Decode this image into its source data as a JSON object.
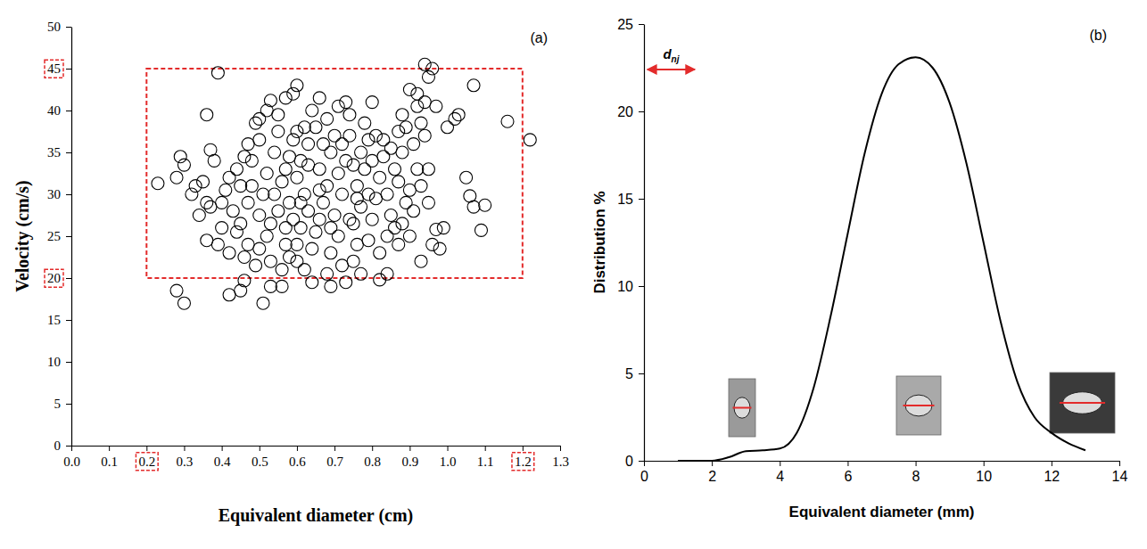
{
  "chart_data": [
    {
      "type": "scatter",
      "panel_label": "(a)",
      "x_label": "Equivalent diameter (cm)",
      "y_label": "Velocity (cm/s)",
      "xlim": [
        0,
        1.3
      ],
      "ylim": [
        0,
        50
      ],
      "xticks": [
        {
          "value": 0,
          "label": "0.0"
        },
        0.1,
        0.2,
        0.3,
        0.4,
        0.5,
        0.6,
        0.7,
        0.8,
        0.9,
        {
          "value": 1,
          "label": "1.0"
        },
        1.1,
        1.2,
        1.3
      ],
      "yticks": [
        0,
        5,
        10,
        15,
        20,
        25,
        30,
        35,
        40,
        45,
        50
      ],
      "marker": "open-circle",
      "color": "#000000",
      "grid": false,
      "highlight": {
        "x": [
          0.2,
          1.2
        ],
        "y": [
          20,
          45
        ]
      },
      "x": [
        0.23,
        0.28,
        0.29,
        0.3,
        0.28,
        0.3,
        0.39,
        0.36,
        0.37,
        0.38,
        0.35,
        0.36,
        0.37,
        0.34,
        0.36,
        0.42,
        0.45,
        0.46,
        0.51,
        0.53,
        0.56,
        0.69,
        0.82,
        0.84,
        0.93,
        0.98,
        0.96,
        0.97,
        0.99,
        1.09,
        1.07,
        1.1,
        1.06,
        1.05,
        1.16,
        1.22,
        1.07,
        1.03,
        1.02,
        1.0,
        0.94,
        0.96,
        0.95,
        0.97,
        0.9,
        0.92,
        0.6,
        0.59,
        0.57,
        0.53,
        0.52,
        0.49,
        0.5,
        0.46,
        0.44,
        0.42,
        0.41,
        0.4,
        0.43,
        0.45,
        0.44,
        0.47,
        0.46,
        0.49,
        0.5,
        0.52,
        0.53,
        0.55,
        0.54,
        0.56,
        0.57,
        0.58,
        0.59,
        0.6,
        0.62,
        0.63,
        0.61,
        0.6,
        0.62,
        0.63,
        0.61,
        0.6,
        0.58,
        0.56,
        0.6,
        0.64,
        0.65,
        0.66,
        0.67,
        0.68,
        0.66,
        0.69,
        0.7,
        0.68,
        0.71,
        0.73,
        0.74,
        0.72,
        0.73,
        0.71,
        0.72,
        0.7,
        0.71,
        0.69,
        0.72,
        0.75,
        0.76,
        0.75,
        0.77,
        0.76,
        0.78,
        0.77,
        0.79,
        0.78,
        0.8,
        0.81,
        0.8,
        0.82,
        0.81,
        0.8,
        0.79,
        0.82,
        0.84,
        0.85,
        0.84,
        0.86,
        0.85,
        0.87,
        0.88,
        0.89,
        0.88,
        0.87,
        0.89,
        0.88,
        0.87,
        0.9,
        0.91,
        0.9,
        0.92,
        0.91,
        0.93,
        0.92,
        0.94,
        0.94,
        0.93,
        0.95,
        0.95,
        0.64,
        0.66,
        0.65,
        0.55,
        0.54,
        0.52,
        0.51,
        0.5,
        0.48,
        0.47,
        0.45,
        0.48,
        0.47,
        0.5,
        0.55,
        0.57,
        0.58,
        0.75,
        0.74,
        0.79,
        0.83,
        0.83,
        0.86,
        0.77,
        0.73,
        0.62,
        0.64,
        0.68,
        0.4,
        0.42,
        0.39,
        0.33,
        0.32,
        0.74,
        0.76,
        0.67,
        0.63,
        0.69,
        0.66,
        0.53,
        0.57,
        0.59,
        0.61
      ],
      "values": [
        31.3,
        32,
        34.5,
        33.5,
        18.5,
        17,
        44.5,
        39.5,
        35.3,
        34,
        31.5,
        29,
        28.5,
        27.5,
        24.5,
        18,
        18.5,
        19.7,
        17,
        19,
        19,
        19,
        19.8,
        20.5,
        22,
        23.5,
        24,
        25.8,
        26,
        25.7,
        28.5,
        28.7,
        29.8,
        32,
        38.7,
        36.5,
        43,
        39.5,
        39,
        38,
        45.5,
        45,
        44,
        40.5,
        42.5,
        42,
        43,
        42,
        41.5,
        41.2,
        40,
        38.5,
        36.5,
        34.5,
        33,
        32,
        30.5,
        29,
        28,
        26.5,
        25.5,
        24,
        22.5,
        21.5,
        23.5,
        25,
        26.5,
        28,
        30,
        31.5,
        33,
        34.5,
        36.5,
        37.5,
        38,
        36,
        34,
        32,
        30,
        28,
        26,
        24,
        22.5,
        21,
        22,
        23.5,
        25.5,
        27,
        29,
        31,
        33,
        35,
        37,
        39,
        40.5,
        41,
        39.5,
        36,
        34,
        32.5,
        30,
        27.5,
        25,
        23,
        21.5,
        22,
        24,
        26.5,
        28.5,
        31,
        33,
        35,
        36.5,
        38.5,
        41,
        37,
        34,
        32,
        29.5,
        27,
        24.5,
        23,
        25,
        27.5,
        30,
        33,
        35.5,
        37.5,
        39.5,
        38,
        35,
        31.5,
        29,
        26.5,
        24,
        25,
        28,
        30.5,
        33,
        36,
        38.5,
        40.5,
        41,
        37,
        31,
        33,
        29,
        40,
        41.5,
        38,
        37.5,
        35,
        32.5,
        30,
        27.5,
        31,
        29,
        31,
        34,
        36,
        39,
        39.5,
        26,
        29,
        33.5,
        37,
        30,
        34.5,
        36.5,
        26,
        20.5,
        19.5,
        21,
        19.5,
        20.5,
        26,
        23,
        24,
        31,
        30,
        27,
        29.5,
        36,
        33.5,
        26,
        30.5,
        22,
        24,
        27,
        29
      ]
    },
    {
      "type": "line",
      "panel_label": "(b)",
      "x_label": "Equivalent diameter (mm)",
      "y_label": "Distribution %",
      "xlim": [
        0,
        14
      ],
      "ylim": [
        0,
        25
      ],
      "xticks": [
        0,
        2,
        4,
        6,
        8,
        10,
        12,
        14
      ],
      "yticks": [
        0,
        5,
        10,
        15,
        20,
        25
      ],
      "color": "#000000",
      "line_style": "solid",
      "grid": false,
      "annotation": {
        "text": "d",
        "subscript": "nj",
        "x": [
          0.1,
          1.5
        ],
        "y": 22.4
      },
      "x": [
        1,
        1.5,
        2,
        2.5,
        3,
        3.5,
        4,
        4.5,
        5,
        5.5,
        6,
        6.5,
        7,
        7.5,
        8,
        8.5,
        9,
        9.5,
        10,
        10.5,
        11,
        11.5,
        12,
        12.5,
        13
      ],
      "values": [
        0,
        0,
        0,
        0.2,
        0.55,
        0.6,
        0.7,
        1.6,
        4.2,
        8.3,
        13,
        17.6,
        21,
        22.7,
        23.1,
        22.5,
        20.5,
        17,
        12.5,
        8,
        4.5,
        2.5,
        1.6,
        1,
        0.6
      ]
    }
  ]
}
